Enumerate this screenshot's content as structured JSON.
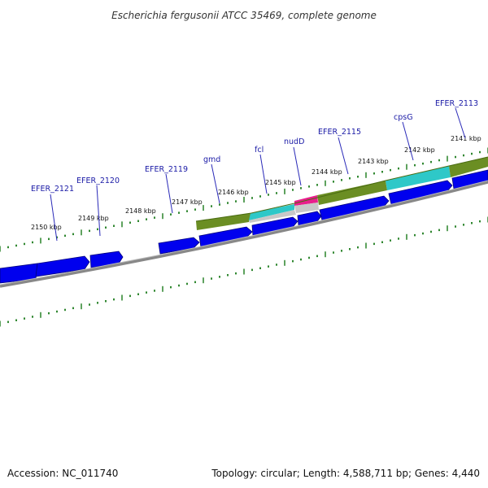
{
  "header": {
    "title": "Escherichia fergusonii ATCC 35469, complete genome"
  },
  "footer": {
    "accession": "Accession: NC_011740",
    "summary": "Topology: circular; Length: 4,588,711 bp; Genes: 4,440"
  },
  "map": {
    "orientation": "clockwise",
    "strand_colors": {
      "forward_gene": "#0000ee",
      "reverse_gene_outline": "#0000aa",
      "gc_track": "#6b8e23",
      "gc_alt": "#2ec8c8",
      "highlight": "#e91e8c",
      "backbone": "#888888",
      "ticks": "#1a7a1a"
    },
    "kbp_labels": [
      {
        "id": "k2150",
        "text": "2150 kbp"
      },
      {
        "id": "k2149",
        "text": "2149 kbp"
      },
      {
        "id": "k2148",
        "text": "2148 kbp"
      },
      {
        "id": "k2147",
        "text": "2147 kbp"
      },
      {
        "id": "k2146",
        "text": "2146 kbp"
      },
      {
        "id": "k2145",
        "text": "2145 kbp"
      },
      {
        "id": "k2144",
        "text": "2144 kbp"
      },
      {
        "id": "k2143",
        "text": "2143 kbp"
      },
      {
        "id": "k2142",
        "text": "2142 kbp"
      },
      {
        "id": "k2141",
        "text": "2141 kbp"
      }
    ],
    "gene_labels": [
      {
        "id": "g2121",
        "text": "EFER_2121"
      },
      {
        "id": "g2120",
        "text": "EFER_2120"
      },
      {
        "id": "g2119",
        "text": "EFER_2119"
      },
      {
        "id": "gmd",
        "text": "gmd"
      },
      {
        "id": "fcl",
        "text": "fcl"
      },
      {
        "id": "nudD",
        "text": "nudD"
      },
      {
        "id": "g2115",
        "text": "EFER_2115"
      },
      {
        "id": "cpsG",
        "text": "cpsG"
      },
      {
        "id": "g2113",
        "text": "EFER_2113"
      }
    ]
  }
}
